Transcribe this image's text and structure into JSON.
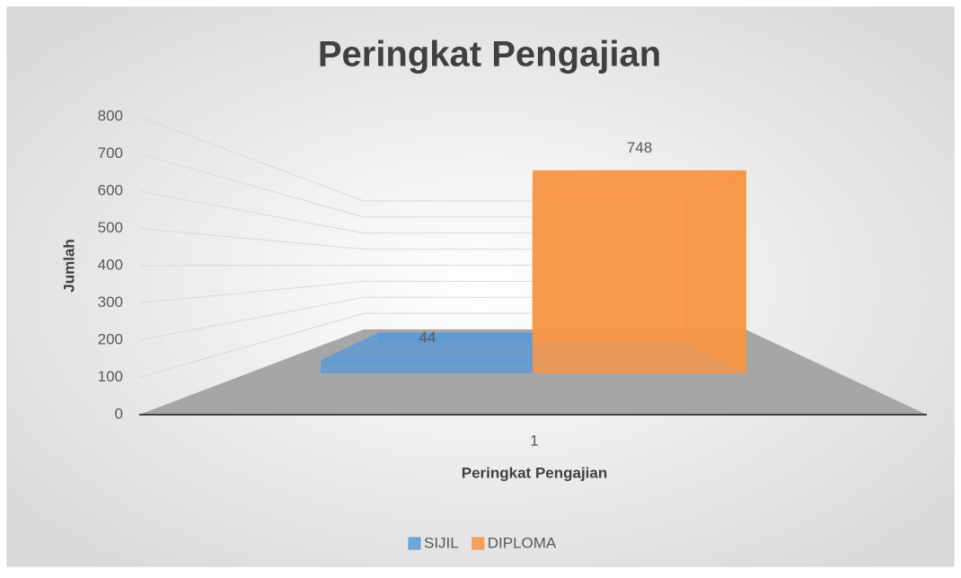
{
  "chart_data": {
    "type": "bar3d",
    "title": "Peringkat Pengajian",
    "x_label": "Peringkat Pengajian",
    "y_label": "Jumlah",
    "categories": [
      "1"
    ],
    "series": [
      {
        "name": "SIJIL",
        "color": "#5b9bd5",
        "values": [
          44
        ]
      },
      {
        "name": "DIPLOMA",
        "color": "#f79646",
        "values": [
          748
        ]
      }
    ],
    "ylim": [
      0,
      800
    ],
    "yticks": [
      0,
      100,
      200,
      300,
      400,
      500,
      600,
      700,
      800
    ],
    "grid": true,
    "legend": "bottom"
  }
}
